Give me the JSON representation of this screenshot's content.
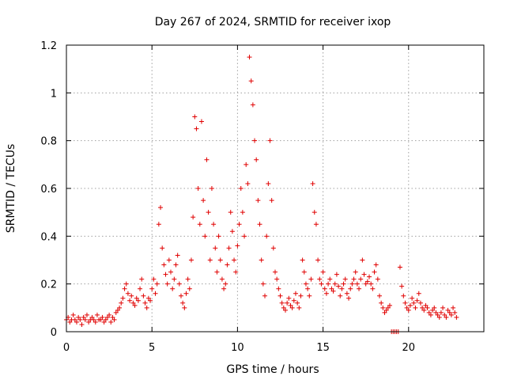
{
  "chart_data": {
    "type": "scatter",
    "title": "Day 267 of 2024, SRMTID for receiver ixop",
    "xlabel": "GPS time / hours",
    "ylabel": "SRMTID / TECUs",
    "xlim": [
      0,
      24.4
    ],
    "ylim": [
      0,
      1.2
    ],
    "xticks": [
      0,
      5,
      10,
      15,
      20
    ],
    "xtick_labels": [
      "0",
      "5",
      "10",
      "15",
      "20"
    ],
    "yticks": [
      0,
      0.2,
      0.4,
      0.6,
      0.8,
      1.0,
      1.2
    ],
    "ytick_labels": [
      "0",
      "0.2",
      "0.4",
      "0.6",
      "0.8",
      "1",
      "1.2"
    ],
    "grid": true,
    "marker": "plus",
    "color": "#e00000",
    "series": [
      {
        "name": "SRMTID",
        "x": [
          0.0,
          0.1,
          0.2,
          0.3,
          0.4,
          0.5,
          0.6,
          0.7,
          0.8,
          0.9,
          1.0,
          1.1,
          1.2,
          1.3,
          1.4,
          1.5,
          1.6,
          1.7,
          1.8,
          1.9,
          2.0,
          2.1,
          2.2,
          2.3,
          2.4,
          2.5,
          2.6,
          2.7,
          2.8,
          2.9,
          3.0,
          3.1,
          3.2,
          3.3,
          3.4,
          3.5,
          3.6,
          3.7,
          3.8,
          3.9,
          4.0,
          4.1,
          4.2,
          4.3,
          4.4,
          4.5,
          4.6,
          4.7,
          4.8,
          4.9,
          5.0,
          5.1,
          5.2,
          5.3,
          5.4,
          5.5,
          5.6,
          5.7,
          5.8,
          5.9,
          6.0,
          6.1,
          6.2,
          6.3,
          6.4,
          6.5,
          6.6,
          6.7,
          6.8,
          6.9,
          7.0,
          7.1,
          7.2,
          7.3,
          7.4,
          7.5,
          7.6,
          7.7,
          7.8,
          7.9,
          8.0,
          8.1,
          8.2,
          8.3,
          8.4,
          8.5,
          8.6,
          8.7,
          8.8,
          8.9,
          9.0,
          9.1,
          9.2,
          9.3,
          9.4,
          9.5,
          9.6,
          9.7,
          9.8,
          9.9,
          10.0,
          10.1,
          10.2,
          10.3,
          10.4,
          10.5,
          10.6,
          10.7,
          10.8,
          10.9,
          11.0,
          11.1,
          11.2,
          11.3,
          11.4,
          11.5,
          11.6,
          11.7,
          11.8,
          11.9,
          12.0,
          12.1,
          12.2,
          12.3,
          12.4,
          12.5,
          12.6,
          12.7,
          12.8,
          12.9,
          13.0,
          13.1,
          13.2,
          13.3,
          13.4,
          13.5,
          13.6,
          13.7,
          13.8,
          13.9,
          14.0,
          14.1,
          14.2,
          14.3,
          14.4,
          14.5,
          14.6,
          14.7,
          14.8,
          14.9,
          15.0,
          15.1,
          15.2,
          15.3,
          15.4,
          15.5,
          15.6,
          15.7,
          15.8,
          15.9,
          16.0,
          16.1,
          16.2,
          16.3,
          16.4,
          16.5,
          16.6,
          16.7,
          16.8,
          16.9,
          17.0,
          17.1,
          17.2,
          17.3,
          17.4,
          17.5,
          17.6,
          17.7,
          17.8,
          17.9,
          18.0,
          18.1,
          18.2,
          18.3,
          18.4,
          18.5,
          18.6,
          18.7,
          18.8,
          18.9,
          19.0,
          19.1,
          19.2,
          19.3,
          19.4,
          19.5,
          19.6,
          19.7,
          19.8,
          19.9,
          20.0,
          20.1,
          20.2,
          20.3,
          20.4,
          20.5,
          20.6,
          20.7,
          20.8,
          20.9,
          21.0,
          21.1,
          21.2,
          21.3,
          21.4,
          21.5,
          21.6,
          21.7,
          21.8,
          21.9,
          22.0,
          22.1,
          22.2,
          22.3,
          22.4,
          22.5,
          22.6,
          22.7,
          22.8
        ],
        "y": [
          0.05,
          0.06,
          0.04,
          0.05,
          0.07,
          0.05,
          0.04,
          0.06,
          0.05,
          0.03,
          0.06,
          0.05,
          0.07,
          0.04,
          0.05,
          0.06,
          0.05,
          0.04,
          0.07,
          0.05,
          0.05,
          0.06,
          0.04,
          0.05,
          0.06,
          0.07,
          0.04,
          0.06,
          0.05,
          0.08,
          0.09,
          0.1,
          0.12,
          0.14,
          0.18,
          0.2,
          0.16,
          0.13,
          0.15,
          0.12,
          0.11,
          0.14,
          0.13,
          0.18,
          0.22,
          0.15,
          0.12,
          0.1,
          0.14,
          0.13,
          0.18,
          0.22,
          0.16,
          0.2,
          0.45,
          0.52,
          0.35,
          0.28,
          0.24,
          0.2,
          0.3,
          0.25,
          0.18,
          0.22,
          0.28,
          0.32,
          0.2,
          0.15,
          0.12,
          0.1,
          0.16,
          0.22,
          0.18,
          0.3,
          0.48,
          0.9,
          0.85,
          0.6,
          0.45,
          0.88,
          0.55,
          0.4,
          0.72,
          0.5,
          0.3,
          0.6,
          0.45,
          0.35,
          0.25,
          0.4,
          0.3,
          0.22,
          0.18,
          0.2,
          0.28,
          0.35,
          0.5,
          0.42,
          0.3,
          0.25,
          0.36,
          0.45,
          0.6,
          0.5,
          0.4,
          0.7,
          0.62,
          1.15,
          1.05,
          0.95,
          0.8,
          0.72,
          0.55,
          0.45,
          0.3,
          0.2,
          0.15,
          0.4,
          0.62,
          0.8,
          0.55,
          0.35,
          0.25,
          0.22,
          0.18,
          0.15,
          0.12,
          0.1,
          0.09,
          0.12,
          0.14,
          0.11,
          0.1,
          0.13,
          0.16,
          0.12,
          0.1,
          0.15,
          0.3,
          0.25,
          0.2,
          0.18,
          0.15,
          0.22,
          0.62,
          0.5,
          0.45,
          0.3,
          0.22,
          0.2,
          0.25,
          0.18,
          0.16,
          0.2,
          0.22,
          0.18,
          0.17,
          0.2,
          0.24,
          0.19,
          0.15,
          0.18,
          0.2,
          0.22,
          0.16,
          0.14,
          0.18,
          0.2,
          0.22,
          0.25,
          0.2,
          0.18,
          0.22,
          0.3,
          0.24,
          0.2,
          0.21,
          0.23,
          0.2,
          0.18,
          0.25,
          0.28,
          0.22,
          0.15,
          0.12,
          0.1,
          0.08,
          0.09,
          0.1,
          0.11,
          0.0,
          0.0,
          0.0,
          0.0,
          0.0,
          0.27,
          0.19,
          0.15,
          0.12,
          0.1,
          0.09,
          0.11,
          0.14,
          0.12,
          0.1,
          0.13,
          0.16,
          0.12,
          0.1,
          0.09,
          0.11,
          0.1,
          0.08,
          0.07,
          0.09,
          0.1,
          0.08,
          0.07,
          0.06,
          0.08,
          0.1,
          0.07,
          0.06,
          0.09,
          0.08,
          0.07,
          0.1,
          0.08,
          0.06
        ]
      }
    ]
  }
}
